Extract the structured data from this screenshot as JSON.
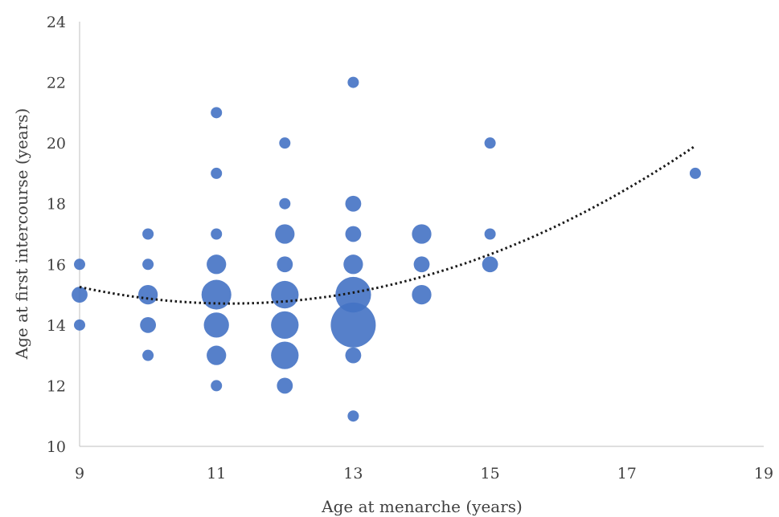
{
  "chart_data": {
    "type": "scatter",
    "subtype": "bubble",
    "title": "",
    "xlabel": "Age at menarche (years)",
    "ylabel": "Age at first intercourse (years)",
    "xlim": [
      9,
      19
    ],
    "ylim": [
      10,
      24
    ],
    "xticks": [
      9,
      11,
      13,
      15,
      17,
      19
    ],
    "yticks": [
      10,
      12,
      14,
      16,
      18,
      20,
      22,
      24
    ],
    "grid": false,
    "legend": "none",
    "marker_color": "#4472C4",
    "trendline_color": "#1a1a1a",
    "points": [
      {
        "x": 9,
        "y": 16,
        "size": 1
      },
      {
        "x": 9,
        "y": 15,
        "size": 2
      },
      {
        "x": 9,
        "y": 14,
        "size": 1
      },
      {
        "x": 10,
        "y": 17,
        "size": 1
      },
      {
        "x": 10,
        "y": 16,
        "size": 1
      },
      {
        "x": 10,
        "y": 15,
        "size": 3
      },
      {
        "x": 10,
        "y": 14,
        "size": 2
      },
      {
        "x": 10,
        "y": 13,
        "size": 1
      },
      {
        "x": 11,
        "y": 21,
        "size": 1
      },
      {
        "x": 11,
        "y": 19,
        "size": 1
      },
      {
        "x": 11,
        "y": 17,
        "size": 1
      },
      {
        "x": 11,
        "y": 16,
        "size": 3
      },
      {
        "x": 11,
        "y": 15,
        "size": 7
      },
      {
        "x": 11,
        "y": 14,
        "size": 5
      },
      {
        "x": 11,
        "y": 13,
        "size": 3
      },
      {
        "x": 11,
        "y": 12,
        "size": 1
      },
      {
        "x": 12,
        "y": 20,
        "size": 1
      },
      {
        "x": 12,
        "y": 18,
        "size": 1
      },
      {
        "x": 12,
        "y": 17,
        "size": 3
      },
      {
        "x": 12,
        "y": 16,
        "size": 2
      },
      {
        "x": 12,
        "y": 15,
        "size": 6
      },
      {
        "x": 12,
        "y": 14,
        "size": 6
      },
      {
        "x": 12,
        "y": 13,
        "size": 6
      },
      {
        "x": 12,
        "y": 12,
        "size": 2
      },
      {
        "x": 13,
        "y": 22,
        "size": 1
      },
      {
        "x": 13,
        "y": 18,
        "size": 2
      },
      {
        "x": 13,
        "y": 17,
        "size": 2
      },
      {
        "x": 13,
        "y": 16,
        "size": 3
      },
      {
        "x": 13,
        "y": 15,
        "size": 10
      },
      {
        "x": 13,
        "y": 14,
        "size": 16
      },
      {
        "x": 13,
        "y": 13,
        "size": 2
      },
      {
        "x": 13,
        "y": 11,
        "size": 1
      },
      {
        "x": 14,
        "y": 17,
        "size": 3
      },
      {
        "x": 14,
        "y": 16,
        "size": 2
      },
      {
        "x": 14,
        "y": 15,
        "size": 3
      },
      {
        "x": 15,
        "y": 20,
        "size": 1
      },
      {
        "x": 15,
        "y": 17,
        "size": 1
      },
      {
        "x": 15,
        "y": 16,
        "size": 2
      },
      {
        "x": 18,
        "y": 19,
        "size": 1
      }
    ],
    "trendline": {
      "type": "polynomial",
      "order": 2,
      "style": "dotted",
      "x_range": [
        9,
        18
      ],
      "points": [
        {
          "x": 9,
          "y": 15.25
        },
        {
          "x": 11,
          "y": 14.75
        },
        {
          "x": 12,
          "y": 14.75
        },
        {
          "x": 13,
          "y": 15.05
        },
        {
          "x": 15,
          "y": 16.35
        },
        {
          "x": 18,
          "y": 19.9
        }
      ]
    }
  }
}
